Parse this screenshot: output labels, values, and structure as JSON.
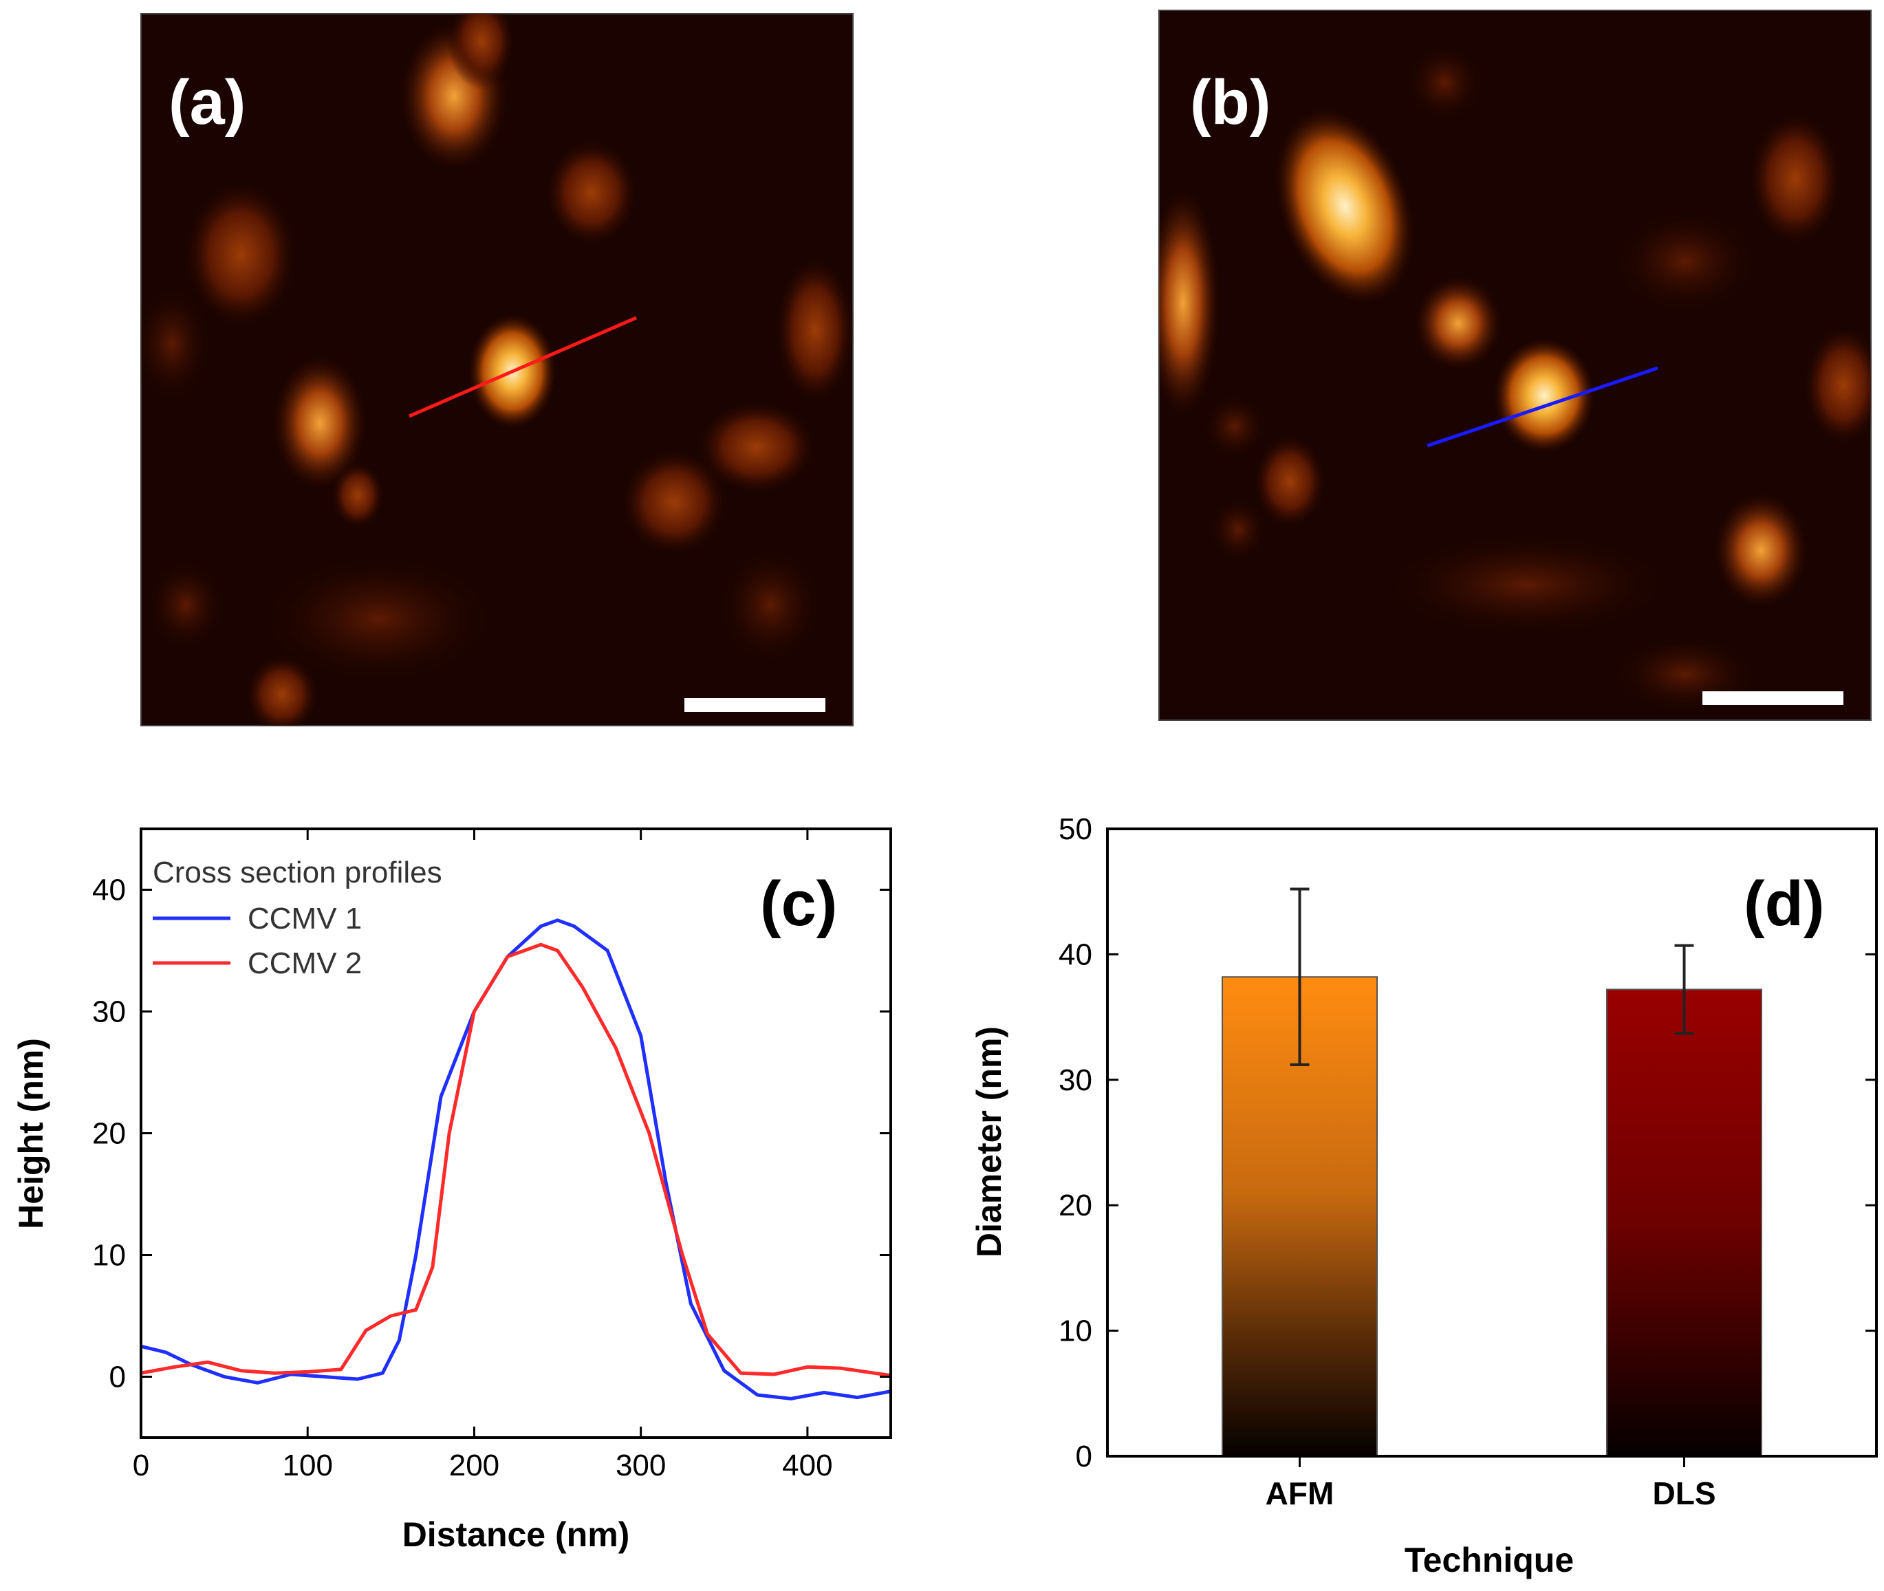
{
  "panels": {
    "a": {
      "label": "(a)"
    },
    "b": {
      "label": "(b)"
    },
    "c": {
      "label": "(c)"
    },
    "d": {
      "label": "(d)"
    }
  },
  "colors": {
    "ccmv1": "#1f2fff",
    "ccmv2": "#ff2a2a",
    "afm_top": "#ff8c10",
    "dls_top": "#9a0000",
    "scan_line_a": "#ff1a1a",
    "scan_line_b": "#1a1aff"
  },
  "chart_data": [
    {
      "id": "c",
      "type": "line",
      "title": "",
      "xlabel": "Distance (nm)",
      "ylabel": "Height (nm)",
      "xlim": [
        0,
        450
      ],
      "ylim": [
        -5,
        45
      ],
      "xticks": [
        0,
        100,
        200,
        300,
        400
      ],
      "yticks": [
        0,
        10,
        20,
        30,
        40
      ],
      "legend": {
        "title": "Cross section profiles",
        "placement": "top-left"
      },
      "series": [
        {
          "name": "CCMV 1",
          "color": "#1f2fff",
          "x": [
            0,
            15,
            30,
            50,
            70,
            90,
            110,
            130,
            145,
            155,
            165,
            180,
            200,
            220,
            240,
            250,
            260,
            280,
            300,
            315,
            330,
            350,
            370,
            390,
            410,
            430,
            450
          ],
          "y": [
            2.5,
            2.0,
            1.0,
            0.0,
            -0.5,
            0.2,
            0.0,
            -0.2,
            0.3,
            3.0,
            10.0,
            23.0,
            30.0,
            34.5,
            37.0,
            37.5,
            37.0,
            35.0,
            28.0,
            16.0,
            6.0,
            0.5,
            -1.5,
            -1.8,
            -1.3,
            -1.7,
            -1.2
          ]
        },
        {
          "name": "CCMV 2",
          "color": "#ff2a2a",
          "x": [
            0,
            20,
            40,
            60,
            80,
            100,
            120,
            135,
            150,
            165,
            175,
            185,
            200,
            220,
            240,
            250,
            265,
            285,
            305,
            325,
            340,
            360,
            380,
            400,
            420,
            440,
            450
          ],
          "y": [
            0.3,
            0.8,
            1.2,
            0.5,
            0.3,
            0.4,
            0.6,
            3.8,
            5.0,
            5.5,
            9.0,
            20.0,
            30.0,
            34.5,
            35.5,
            35.0,
            32.0,
            27.0,
            20.0,
            10.0,
            3.5,
            0.3,
            0.2,
            0.8,
            0.7,
            0.3,
            0.1
          ]
        }
      ]
    },
    {
      "id": "d",
      "type": "bar",
      "title": "",
      "xlabel": "Technique",
      "ylabel": "Diameter (nm)",
      "ylim": [
        0,
        50
      ],
      "yticks": [
        0,
        10,
        20,
        30,
        40,
        50
      ],
      "categories": [
        "AFM",
        "DLS"
      ],
      "values": [
        38.2,
        37.2
      ],
      "errors": [
        7.0,
        3.5
      ]
    }
  ]
}
